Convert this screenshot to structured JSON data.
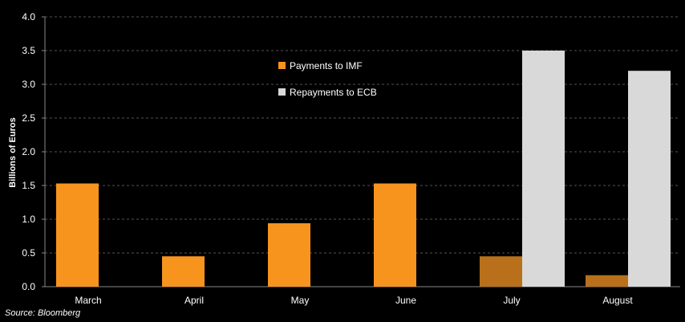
{
  "chart_data": {
    "type": "bar",
    "categories": [
      "March",
      "April",
      "May",
      "June",
      "July",
      "August"
    ],
    "series": [
      {
        "name": "Payments to IMF",
        "values": [
          1.53,
          0.45,
          0.94,
          1.53,
          0.45,
          0.17
        ],
        "color": "#f7941d",
        "dimmed_color": "#b8701a",
        "dimmed_categories": [
          "July",
          "August"
        ]
      },
      {
        "name": "Repayments to ECB",
        "values": [
          0,
          0,
          0,
          0,
          3.5,
          3.2
        ],
        "color": "#d9d9d9"
      }
    ],
    "ylabel": "Billions of Euros",
    "ylim": [
      0,
      4.0
    ],
    "yticks": [
      "0.0",
      "0.5",
      "1.0",
      "1.5",
      "2.0",
      "2.5",
      "3.0",
      "3.5",
      "4.0"
    ],
    "grid": true,
    "legend_position": "top-center",
    "background_color": "#000000",
    "grid_color": "#555555"
  },
  "source": "Source: Bloomberg"
}
